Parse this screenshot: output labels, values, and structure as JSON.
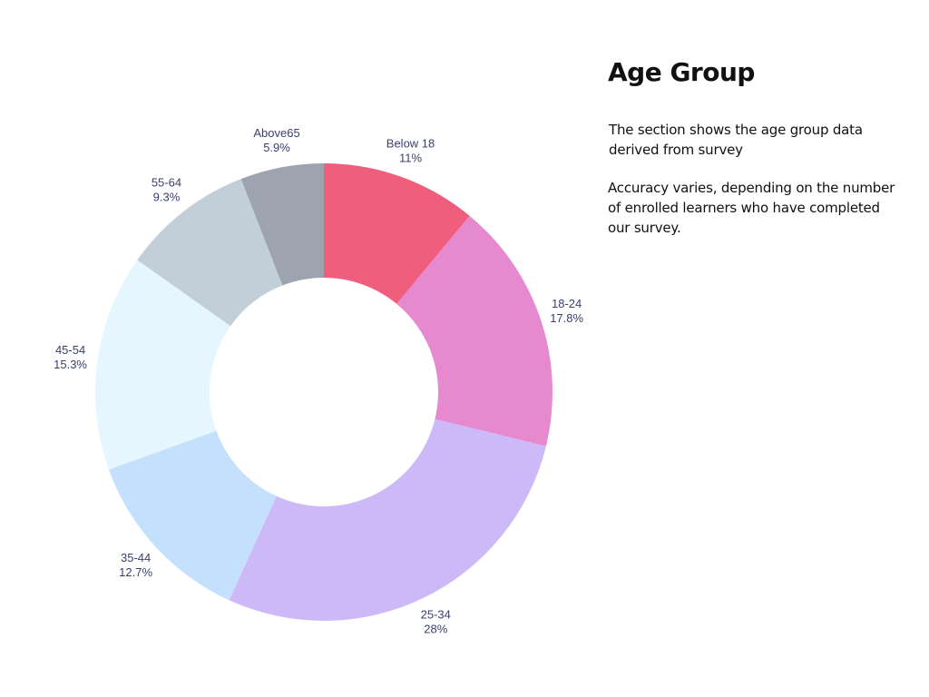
{
  "panel": {
    "title": "Age Group",
    "description": "The section shows the age group data derived from survey",
    "note": "Accuracy varies, depending on the number of enrolled learners who have completed our survey."
  },
  "chart_data": {
    "type": "pie",
    "hole": 0.5,
    "direction": "clockwise",
    "start": "top",
    "slices": [
      {
        "label": "Below 18",
        "value": 11,
        "value_text": "11%",
        "color": "#ef5f7d"
      },
      {
        "label": "18-24",
        "value": 17.8,
        "value_text": "17.8%",
        "color": "#e689cf"
      },
      {
        "label": "25-34",
        "value": 28,
        "value_text": "28%",
        "color": "#cdb8f8"
      },
      {
        "label": "35-44",
        "value": 12.7,
        "value_text": "12.7%",
        "color": "#c5e0fd"
      },
      {
        "label": "45-54",
        "value": 15.3,
        "value_text": "15.3%",
        "color": "#e6f6fe"
      },
      {
        "label": "55-64",
        "value": 9.3,
        "value_text": "9.3%",
        "color": "#c2cfd9"
      },
      {
        "label": "Above65",
        "value": 5.9,
        "value_text": "5.9%",
        "color": "#9ea4af"
      }
    ],
    "label_color": "#3b3f6e"
  }
}
